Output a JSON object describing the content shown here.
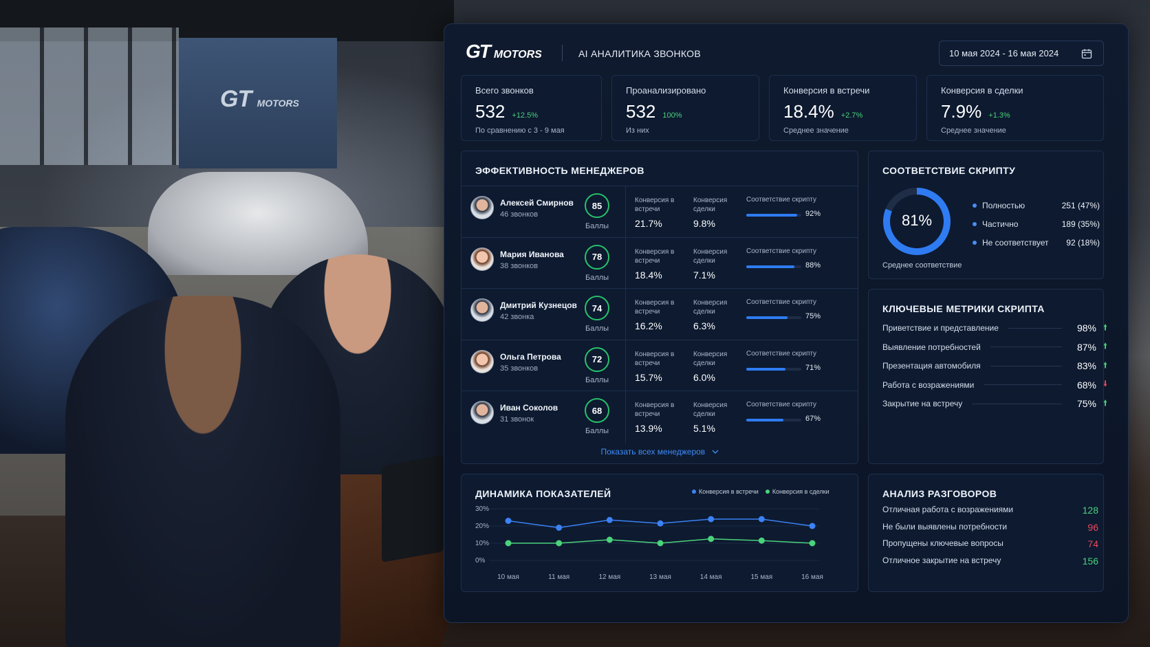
{
  "background": {
    "wall_logo": "GT",
    "wall_logo_suffix": "MOTORS"
  },
  "header": {
    "logo_gt": "GT",
    "logo_motors": "MOTORS",
    "title": "AI АНАЛИТИКА ЗВОНКОВ",
    "date_range": "10 мая 2024 - 16 мая 2024",
    "calendar_icon": "calendar-icon"
  },
  "kpis": [
    {
      "title": "Всего звонков",
      "value": "532",
      "delta": "+12.5%",
      "sub": "По сравнению с 3 - 9 мая"
    },
    {
      "title": "Проанализировано",
      "value": "532",
      "delta": "100%",
      "sub": "Из них"
    },
    {
      "title": "Конверсия в встречи",
      "value": "18.4%",
      "delta": "+2.7%",
      "sub": "Среднее значение"
    },
    {
      "title": "Конверсия в сделки",
      "value": "7.9%",
      "delta": "+1.3%",
      "sub": "Среднее значение"
    }
  ],
  "managers": {
    "title": "ЭФФЕКТИВНОСТЬ МЕНЕДЖЕРОВ",
    "score_label": "Баллы",
    "meet_label": "Конверсия в встречи",
    "deal_label": "Конверсия сделки",
    "script_label": "Соответствие скрипту",
    "show_all": "Показать всех менеджеров",
    "accent": "#2f7bf2",
    "score_ring_color": "#27c36a",
    "rows": [
      {
        "name": "Алексей Смирнов",
        "calls": "46 звонков",
        "score": "85",
        "meet": "21.7%",
        "deal": "9.8%",
        "script": "92%",
        "script_pct": 92,
        "avatar": "male"
      },
      {
        "name": "Мария Иванова",
        "calls": "38 звонков",
        "score": "78",
        "meet": "18.4%",
        "deal": "7.1%",
        "script": "88%",
        "script_pct": 88,
        "avatar": "female"
      },
      {
        "name": "Дмитрий Кузнецов",
        "calls": "42 звонка",
        "score": "74",
        "meet": "16.2%",
        "deal": "6.3%",
        "script": "75%",
        "script_pct": 75,
        "avatar": "male"
      },
      {
        "name": "Ольга Петрова",
        "calls": "35 звонков",
        "score": "72",
        "meet": "15.7%",
        "deal": "6.0%",
        "script": "71%",
        "script_pct": 71,
        "avatar": "female"
      },
      {
        "name": "Иван Соколов",
        "calls": "31 звонок",
        "score": "68",
        "meet": "13.9%",
        "deal": "5.1%",
        "script": "67%",
        "script_pct": 67,
        "avatar": "male"
      }
    ]
  },
  "script_compliance": {
    "title": "СООТВЕТСТВИЕ СКРИПТУ",
    "donut_value": "81%",
    "donut_pct": 81,
    "caption": "Среднее соответствие",
    "legend": [
      {
        "label": "Полностью",
        "value": "251 (47%)"
      },
      {
        "label": "Частично",
        "value": "189 (35%)"
      },
      {
        "label": "Не соответствует",
        "value": "92 (18%)"
      }
    ]
  },
  "key_metrics": {
    "title": "КЛЮЧЕВЫЕ МЕТРИКИ СКРИПТА",
    "rows": [
      {
        "label": "Приветствие и представление",
        "value": "98%",
        "trend": "up"
      },
      {
        "label": "Выявление потребностей",
        "value": "87%",
        "trend": "up"
      },
      {
        "label": "Презентация автомобиля",
        "value": "83%",
        "trend": "up"
      },
      {
        "label": "Работа с возражениями",
        "value": "68%",
        "trend": "down"
      },
      {
        "label": "Закрытие на встречу",
        "value": "75%",
        "trend": "up"
      }
    ]
  },
  "dynamics": {
    "title": "ДИНАМИКА ПОКАЗАТЕЛЕЙ",
    "chart_data": {
      "type": "line",
      "x": [
        "10 мая",
        "11 мая",
        "12 мая",
        "13 мая",
        "14 мая",
        "15 мая",
        "16 мая"
      ],
      "yticks": [
        "30%",
        "20%",
        "10%",
        "0%"
      ],
      "ylim": [
        0,
        30
      ],
      "grid": true,
      "legend_position": "top-right",
      "series": [
        {
          "name": "Конверсия в встречи",
          "color": "#3b82f6",
          "values": [
            23,
            19,
            23.5,
            21.5,
            24,
            24,
            20
          ]
        },
        {
          "name": "Конверсия в сделки",
          "color": "#4bd37b",
          "values": [
            10,
            10,
            12,
            10,
            12.5,
            11.5,
            10
          ]
        }
      ]
    }
  },
  "conversations": {
    "title": "АНАЛИЗ РАЗГОВОРОВ",
    "rows": [
      {
        "label": "Отличная работа с возражениями",
        "value": "128",
        "color": "#4bd37b"
      },
      {
        "label": "Не были выявлены потребности",
        "value": "96",
        "color": "#f0485b"
      },
      {
        "label": "Пропущены ключевые вопросы",
        "value": "74",
        "color": "#f0485b"
      },
      {
        "label": "Отличное закрытие на встречу",
        "value": "156",
        "color": "#4bd37b"
      }
    ]
  }
}
